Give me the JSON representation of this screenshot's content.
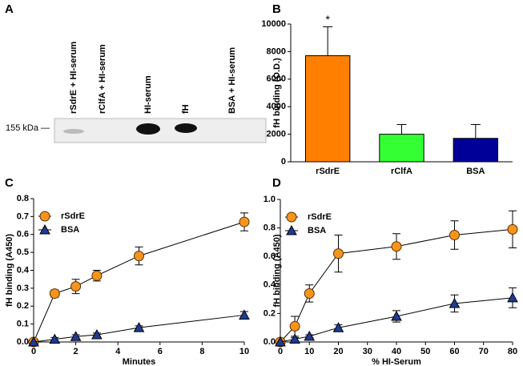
{
  "chart_data": [
    {
      "type": "blot",
      "panel": "A",
      "categories": [
        "rSdrE + HI-serum",
        "rClfA + HI-serum",
        "HI-serum",
        "fH",
        "BSA + HI-serum"
      ],
      "marker_label": "155 kDa —"
    },
    {
      "type": "bar",
      "panel": "B",
      "ylabel": "fH binding (O.D.)",
      "categories": [
        "rSdrE",
        "rClfA",
        "BSA"
      ],
      "values": [
        7700,
        2000,
        1700
      ],
      "errors": [
        2100,
        700,
        1000
      ],
      "colors": [
        "#ff8000",
        "#33ff33",
        "#000099"
      ],
      "annotations": [
        "*",
        null,
        null
      ],
      "ylim": [
        0,
        10000
      ],
      "yticks": [
        0,
        2000,
        4000,
        6000,
        8000,
        10000
      ]
    },
    {
      "type": "line",
      "panel": "C",
      "xlabel": "Minutes",
      "ylabel": "fH binding (A450)",
      "x": [
        0,
        1,
        2,
        3,
        5,
        10
      ],
      "series": [
        {
          "name": "rSdrE",
          "color": "#f7941d",
          "marker": "circle",
          "values": [
            0,
            0.27,
            0.31,
            0.37,
            0.48,
            0.67
          ],
          "errors": [
            0,
            0.02,
            0.04,
            0.03,
            0.05,
            0.05
          ]
        },
        {
          "name": "BSA",
          "color": "#1f3a93",
          "marker": "triangle",
          "values": [
            0,
            0.015,
            0.03,
            0.04,
            0.08,
            0.15
          ],
          "errors": [
            0,
            0.01,
            0.01,
            0.01,
            0.01,
            0.02
          ]
        }
      ],
      "xlim": [
        0,
        10
      ],
      "xticks": [
        0,
        2,
        4,
        6,
        8,
        10
      ],
      "ylim": [
        0,
        0.8
      ],
      "yticks": [
        {
          "value": 0,
          "label": "0.0"
        },
        0.1,
        0.2,
        0.3,
        0.4,
        0.5,
        0.6,
        0.7,
        0.8
      ],
      "legend": "upper left"
    },
    {
      "type": "line",
      "panel": "D",
      "xlabel": "% HI-Serum",
      "ylabel": "fH binding (A450)",
      "x": [
        0,
        5,
        10,
        20,
        40,
        60,
        80
      ],
      "series": [
        {
          "name": "rSdrE",
          "color": "#f7941d",
          "marker": "circle",
          "values": [
            0,
            0.11,
            0.34,
            0.62,
            0.67,
            0.75,
            0.79
          ],
          "errors": [
            0,
            0.07,
            0.06,
            0.13,
            0.09,
            0.1,
            0.13
          ]
        },
        {
          "name": "BSA",
          "color": "#1f3a93",
          "marker": "triangle",
          "values": [
            0,
            0.02,
            0.04,
            0.1,
            0.18,
            0.27,
            0.31
          ],
          "errors": [
            0,
            0.01,
            0.01,
            0.02,
            0.04,
            0.06,
            0.07
          ]
        }
      ],
      "xlim": [
        0,
        80
      ],
      "xticks": [
        0,
        10,
        20,
        30,
        40,
        50,
        60,
        70,
        80
      ],
      "ylim": [
        0,
        1
      ],
      "yticks": [
        {
          "value": 0,
          "label": "0.0"
        },
        0.2,
        0.4,
        0.6,
        0.8,
        {
          "value": 1,
          "label": "1.0"
        }
      ],
      "legend": "upper left"
    }
  ]
}
